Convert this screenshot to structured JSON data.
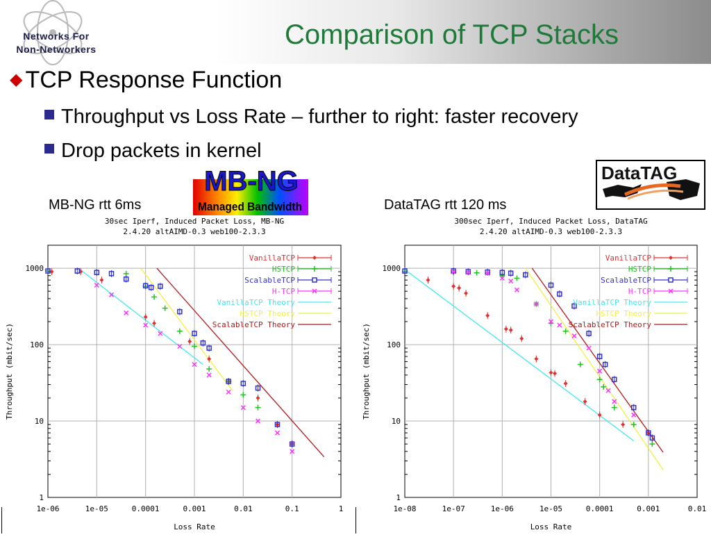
{
  "logo": {
    "line1": "Networks For",
    "line2": "Non-Networkers"
  },
  "title": "Comparison of TCP Stacks",
  "bullets": {
    "main": "TCP Response Function",
    "sub1": "Throughput vs Loss Rate – further to right: faster recovery",
    "sub2": "Drop packets in kernel"
  },
  "captions": {
    "left": "MB-NG rtt 6ms",
    "right": "DataTAG rtt 120 ms"
  },
  "mbng_logo": {
    "line1": "MB-NG",
    "line2": "Managed Bandwidth"
  },
  "datatag_logo": {
    "text": "DataTAG"
  },
  "chart_data": [
    {
      "type": "scatter",
      "title": [
        "30sec Iperf, Induced Packet Loss, MB-NG",
        "2.4.20 altAIMD-0.3 web100-2.3.3"
      ],
      "xlabel": "Loss Rate",
      "ylabel": "Throughput (mbit/sec)",
      "xscale": "log",
      "yscale": "log",
      "xlim": [
        1e-06,
        1
      ],
      "ylim": [
        1,
        2000
      ],
      "xticks": [
        {
          "v": 1e-06,
          "l": "1e-06"
        },
        {
          "v": 1e-05,
          "l": "1e-05"
        },
        {
          "v": 0.0001,
          "l": "0.0001"
        },
        {
          "v": 0.001,
          "l": "0.001"
        },
        {
          "v": 0.01,
          "l": "0.01"
        },
        {
          "v": 0.1,
          "l": "0.1"
        },
        {
          "v": 1,
          "l": "1"
        }
      ],
      "yticks": [
        {
          "v": 1,
          "l": "1"
        },
        {
          "v": 10,
          "l": "10"
        },
        {
          "v": 100,
          "l": "100"
        },
        {
          "v": 1000,
          "l": "1000"
        }
      ],
      "legend_position": "top-right",
      "grid": true,
      "series": [
        {
          "name": "VanillaTCP",
          "color": "#e03030",
          "marker": "diamond",
          "points": [
            [
              1.2e-06,
              900
            ],
            [
              4.69e-06,
              900
            ],
            [
              1.26e-05,
              700
            ],
            [
              0.0001,
              230
            ],
            [
              0.00015,
              190
            ],
            [
              0.0008,
              110
            ],
            [
              0.002,
              65
            ],
            [
              0.005,
              33
            ],
            [
              0.02,
              20
            ],
            [
              0.05,
              9
            ],
            [
              0.1,
              5
            ]
          ]
        },
        {
          "name": "HSTCP",
          "color": "#20c020",
          "marker": "plus",
          "points": [
            [
              1e-06,
              920
            ],
            [
              4e-05,
              850
            ],
            [
              0.0001,
              580
            ],
            [
              0.00015,
              420
            ],
            [
              0.00025,
              300
            ],
            [
              0.0005,
              150
            ],
            [
              0.001,
              95
            ],
            [
              0.002,
              48
            ],
            [
              0.005,
              33
            ],
            [
              0.01,
              22
            ],
            [
              0.02,
              15
            ]
          ]
        },
        {
          "name": "ScalableTCP",
          "color": "#3030d0",
          "marker": "square",
          "points": [
            [
              1e-06,
              920
            ],
            [
              4e-06,
              920
            ],
            [
              1e-05,
              880
            ],
            [
              2e-05,
              850
            ],
            [
              4e-05,
              720
            ],
            [
              0.0001,
              590
            ],
            [
              0.00013,
              560
            ],
            [
              0.0002,
              580
            ],
            [
              0.0005,
              270
            ],
            [
              0.001,
              140
            ],
            [
              0.0015,
              105
            ],
            [
              0.002,
              90
            ],
            [
              0.005,
              33
            ],
            [
              0.01,
              31
            ],
            [
              0.02,
              27
            ],
            [
              0.05,
              9
            ],
            [
              0.1,
              5
            ]
          ]
        },
        {
          "name": "H-TCP",
          "color": "#ff30ff",
          "marker": "x",
          "points": [
            [
              1e-05,
              600
            ],
            [
              2e-05,
              450
            ],
            [
              4e-05,
              260
            ],
            [
              0.0001,
              180
            ],
            [
              0.0002,
              140
            ],
            [
              0.0005,
              95
            ],
            [
              0.001,
              55
            ],
            [
              0.002,
              40
            ],
            [
              0.005,
              24
            ],
            [
              0.01,
              15
            ],
            [
              0.02,
              10
            ],
            [
              0.05,
              7
            ],
            [
              0.1,
              4
            ]
          ]
        }
      ],
      "theory": [
        {
          "name": "VanillaTCP Theory",
          "color": "#40e8f0",
          "points": [
            [
              4.2e-06,
              1000
            ],
            [
              0.0015,
              55
            ]
          ]
        },
        {
          "name": "HSTCP Theory",
          "color": "#f0f040",
          "points": [
            [
              8e-05,
              1000
            ],
            [
              0.006,
              25
            ]
          ]
        },
        {
          "name": "ScalableTCP Theory",
          "color": "#b01818",
          "points": [
            [
              0.00017,
              1000
            ],
            [
              0.45,
              3.4
            ]
          ]
        }
      ]
    },
    {
      "type": "scatter",
      "title": [
        "300sec Iperf, Induced Packet Loss, DataTAG",
        "2.4.20 altAIMD-0.3 web100-2.3.3"
      ],
      "xlabel": "Loss Rate",
      "ylabel": "Throughput (mbit/sec)",
      "xscale": "log",
      "yscale": "log",
      "xlim": [
        1e-08,
        0.01
      ],
      "ylim": [
        1,
        2000
      ],
      "xticks": [
        {
          "v": 1e-08,
          "l": "1e-08"
        },
        {
          "v": 1e-07,
          "l": "1e-07"
        },
        {
          "v": 1e-06,
          "l": "1e-06"
        },
        {
          "v": 1e-05,
          "l": "1e-05"
        },
        {
          "v": 0.0001,
          "l": "0.0001"
        },
        {
          "v": 0.001,
          "l": "0.001"
        },
        {
          "v": 0.01,
          "l": "0.01"
        }
      ],
      "yticks": [
        {
          "v": 1,
          "l": "1"
        },
        {
          "v": 10,
          "l": "10"
        },
        {
          "v": 100,
          "l": "100"
        },
        {
          "v": 1000,
          "l": "1000"
        }
      ],
      "legend_position": "top-right",
      "grid": true,
      "series": [
        {
          "name": "VanillaTCP",
          "color": "#e03030",
          "marker": "diamond",
          "points": [
            [
              3e-08,
              700
            ],
            [
              1e-07,
              580
            ],
            [
              1.3e-07,
              550
            ],
            [
              1.8e-07,
              470
            ],
            [
              5e-07,
              240
            ],
            [
              1.2e-06,
              160
            ],
            [
              1.5e-06,
              155
            ],
            [
              2.5e-06,
              120
            ],
            [
              5e-06,
              65
            ],
            [
              1e-05,
              43
            ],
            [
              1.2e-05,
              42
            ],
            [
              2e-05,
              31
            ],
            [
              5e-05,
              18
            ],
            [
              0.0001,
              12
            ],
            [
              0.0003,
              9
            ],
            [
              0.001,
              7
            ]
          ]
        },
        {
          "name": "HSTCP",
          "color": "#20c020",
          "marker": "plus",
          "points": [
            [
              1e-08,
              900
            ],
            [
              1e-07,
              880
            ],
            [
              3e-07,
              870
            ],
            [
              1e-06,
              800
            ],
            [
              2e-06,
              740
            ],
            [
              5e-06,
              340
            ],
            [
              1e-05,
              190
            ],
            [
              2e-05,
              150
            ],
            [
              4e-05,
              55
            ],
            [
              0.0001,
              35
            ],
            [
              0.00012,
              28
            ],
            [
              0.0002,
              15
            ],
            [
              0.0005,
              9
            ],
            [
              0.0012,
              5
            ]
          ]
        },
        {
          "name": "ScalableTCP",
          "color": "#3030d0",
          "marker": "square",
          "points": [
            [
              1e-08,
              920
            ],
            [
              1e-07,
              920
            ],
            [
              2e-07,
              900
            ],
            [
              5e-07,
              890
            ],
            [
              1e-06,
              880
            ],
            [
              1.5e-06,
              860
            ],
            [
              3e-06,
              820
            ],
            [
              1e-05,
              600
            ],
            [
              1.5e-05,
              460
            ],
            [
              3e-05,
              320
            ],
            [
              6e-05,
              140
            ],
            [
              0.0001,
              70
            ],
            [
              0.00013,
              55
            ],
            [
              0.0002,
              35
            ],
            [
              0.0005,
              15
            ],
            [
              0.001,
              7
            ],
            [
              0.0012,
              6
            ]
          ]
        },
        {
          "name": "H-TCP",
          "color": "#ff30ff",
          "marker": "x",
          "points": [
            [
              1e-07,
              900
            ],
            [
              2e-07,
              880
            ],
            [
              5e-07,
              860
            ],
            [
              1e-06,
              740
            ],
            [
              1.5e-06,
              680
            ],
            [
              2e-06,
              520
            ],
            [
              5e-06,
              340
            ],
            [
              1e-05,
              200
            ],
            [
              1.5e-05,
              180
            ],
            [
              3e-05,
              130
            ],
            [
              6e-05,
              90
            ],
            [
              0.0001,
              45
            ],
            [
              0.00015,
              25
            ],
            [
              0.0002,
              18
            ],
            [
              0.0005,
              12
            ]
          ]
        }
      ],
      "theory": [
        {
          "name": "VanillaTCP Theory",
          "color": "#40e8f0",
          "points": [
            [
              1e-08,
              960
            ],
            [
              0.0005,
              5.5
            ]
          ]
        },
        {
          "name": "HSTCP Theory",
          "color": "#f0f040",
          "points": [
            [
              3e-06,
              1000
            ],
            [
              0.002,
              2.3
            ]
          ]
        },
        {
          "name": "ScalableTCP Theory",
          "color": "#b01818",
          "points": [
            [
              4.1e-06,
              1000
            ],
            [
              0.002,
              3.9
            ]
          ]
        }
      ]
    }
  ]
}
